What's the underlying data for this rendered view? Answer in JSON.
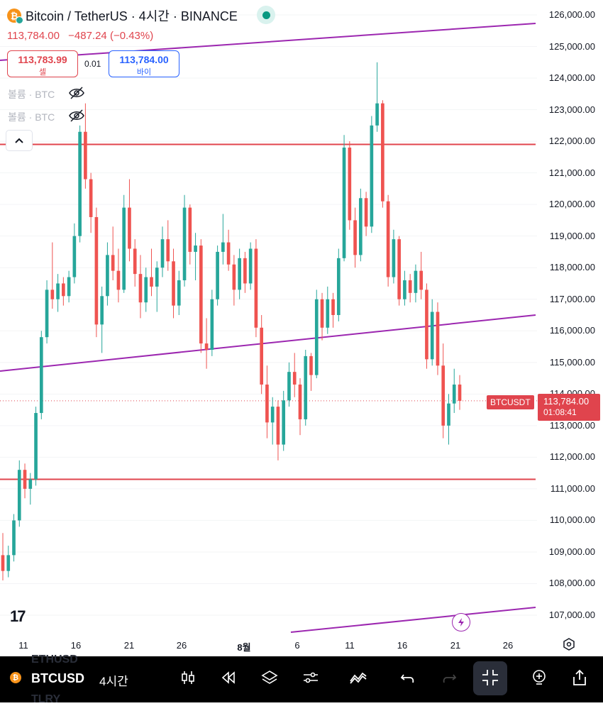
{
  "header": {
    "symbol_title": "Bitcoin / TetherUS · 4시간 · BINANCE",
    "last_price": "113,784.00",
    "change": "−487.24 (−0.43%)"
  },
  "order": {
    "sell_price": "113,783.99",
    "sell_label": "셀",
    "spread": "0.01",
    "buy_price": "113,784.00",
    "buy_label": "바이"
  },
  "indicators": [
    {
      "label": "볼륨 · BTC"
    },
    {
      "label": "볼륨 · BTC"
    }
  ],
  "price_axis": {
    "labels": [
      "126,000.00",
      "125,000.00",
      "124,000.00",
      "123,000.00",
      "122,000.00",
      "121,000.00",
      "120,000.00",
      "119,000.00",
      "118,000.00",
      "117,000.00",
      "116,000.00",
      "115,000.00",
      "114,000.00",
      "113,000.00",
      "112,000.00",
      "111,000.00",
      "110,000.00",
      "109,000.00",
      "108,000.00",
      "107,000.00"
    ]
  },
  "time_axis": {
    "labels": [
      "11",
      "16",
      "21",
      "26",
      "8월",
      "6",
      "11",
      "16",
      "21",
      "26"
    ]
  },
  "price_tag": {
    "symbol": "BTCUSDT",
    "price": "113,784.00",
    "countdown": "01:08:41"
  },
  "toolbar": {
    "symbol": "BTCUSD",
    "interval": "4시간",
    "ghost_top": "ETHUSD",
    "ghost_bottom": "TLRY"
  },
  "colors": {
    "up": "#26a69a",
    "down": "#ef5350",
    "horizontal_level": "#e0444d",
    "channel": "#9c27b0",
    "accent_blue": "#2962ff"
  },
  "chart_data": {
    "type": "candlestick",
    "ylim": [
      106500,
      126500
    ],
    "horizontal_lines": [
      121900,
      111300
    ],
    "current_price": 113784,
    "price_line": 113784,
    "candles": [
      {
        "o": 108900,
        "h": 109600,
        "l": 108100,
        "c": 108400
      },
      {
        "o": 108400,
        "h": 109200,
        "l": 108200,
        "c": 108900
      },
      {
        "o": 108900,
        "h": 110200,
        "l": 108700,
        "c": 110000
      },
      {
        "o": 110000,
        "h": 111900,
        "l": 109800,
        "c": 111600
      },
      {
        "o": 111600,
        "h": 111800,
        "l": 110700,
        "c": 111000
      },
      {
        "o": 111000,
        "h": 111500,
        "l": 110500,
        "c": 111300
      },
      {
        "o": 111300,
        "h": 113600,
        "l": 111100,
        "c": 113400
      },
      {
        "o": 113400,
        "h": 116000,
        "l": 113200,
        "c": 115800
      },
      {
        "o": 115800,
        "h": 117600,
        "l": 115600,
        "c": 117300
      },
      {
        "o": 117300,
        "h": 118800,
        "l": 116700,
        "c": 117000
      },
      {
        "o": 117000,
        "h": 117800,
        "l": 116600,
        "c": 117500
      },
      {
        "o": 117500,
        "h": 117700,
        "l": 116800,
        "c": 117100
      },
      {
        "o": 117100,
        "h": 117900,
        "l": 116900,
        "c": 117700
      },
      {
        "o": 117700,
        "h": 119400,
        "l": 117500,
        "c": 119000
      },
      {
        "o": 119000,
        "h": 122500,
        "l": 118800,
        "c": 122300
      },
      {
        "o": 122300,
        "h": 123200,
        "l": 120500,
        "c": 120800
      },
      {
        "o": 120800,
        "h": 121000,
        "l": 119100,
        "c": 119600
      },
      {
        "o": 119600,
        "h": 119900,
        "l": 115800,
        "c": 116200
      },
      {
        "o": 116200,
        "h": 117400,
        "l": 115300,
        "c": 117100
      },
      {
        "o": 117100,
        "h": 118800,
        "l": 116800,
        "c": 118400
      },
      {
        "o": 118400,
        "h": 119300,
        "l": 117600,
        "c": 117900
      },
      {
        "o": 117900,
        "h": 118600,
        "l": 116900,
        "c": 117300
      },
      {
        "o": 117300,
        "h": 120300,
        "l": 117200,
        "c": 119900
      },
      {
        "o": 119900,
        "h": 120800,
        "l": 118200,
        "c": 118600
      },
      {
        "o": 118600,
        "h": 118900,
        "l": 117400,
        "c": 117800
      },
      {
        "o": 117800,
        "h": 118400,
        "l": 116400,
        "c": 116900
      },
      {
        "o": 116900,
        "h": 118000,
        "l": 116600,
        "c": 117700
      },
      {
        "o": 117700,
        "h": 118600,
        "l": 117100,
        "c": 117400
      },
      {
        "o": 117400,
        "h": 118200,
        "l": 116600,
        "c": 118000
      },
      {
        "o": 118000,
        "h": 119300,
        "l": 117700,
        "c": 118900
      },
      {
        "o": 118900,
        "h": 119500,
        "l": 117900,
        "c": 118200
      },
      {
        "o": 118200,
        "h": 118600,
        "l": 116400,
        "c": 116800
      },
      {
        "o": 116800,
        "h": 117900,
        "l": 116500,
        "c": 117600
      },
      {
        "o": 117600,
        "h": 120300,
        "l": 117400,
        "c": 119900
      },
      {
        "o": 119900,
        "h": 120000,
        "l": 118100,
        "c": 118500
      },
      {
        "o": 118500,
        "h": 119100,
        "l": 117600,
        "c": 118700
      },
      {
        "o": 118700,
        "h": 118900,
        "l": 115300,
        "c": 115600
      },
      {
        "o": 115600,
        "h": 116400,
        "l": 114800,
        "c": 115400
      },
      {
        "o": 115400,
        "h": 117300,
        "l": 115200,
        "c": 117000
      },
      {
        "o": 117000,
        "h": 118700,
        "l": 116800,
        "c": 118500
      },
      {
        "o": 118500,
        "h": 119700,
        "l": 118100,
        "c": 118800
      },
      {
        "o": 118800,
        "h": 119200,
        "l": 117900,
        "c": 118100
      },
      {
        "o": 118100,
        "h": 118400,
        "l": 116800,
        "c": 117300
      },
      {
        "o": 117300,
        "h": 118600,
        "l": 117000,
        "c": 118300
      },
      {
        "o": 118300,
        "h": 118500,
        "l": 117200,
        "c": 117500
      },
      {
        "o": 117500,
        "h": 118800,
        "l": 117300,
        "c": 118600
      },
      {
        "o": 118600,
        "h": 118900,
        "l": 115800,
        "c": 116100
      },
      {
        "o": 116100,
        "h": 116500,
        "l": 114000,
        "c": 114300
      },
      {
        "o": 114300,
        "h": 114900,
        "l": 112600,
        "c": 113100
      },
      {
        "o": 113100,
        "h": 113900,
        "l": 112400,
        "c": 113600
      },
      {
        "o": 113600,
        "h": 113800,
        "l": 111900,
        "c": 112400
      },
      {
        "o": 112400,
        "h": 114100,
        "l": 112200,
        "c": 113800
      },
      {
        "o": 113800,
        "h": 115000,
        "l": 113600,
        "c": 114700
      },
      {
        "o": 114700,
        "h": 115300,
        "l": 113900,
        "c": 114300
      },
      {
        "o": 114300,
        "h": 114500,
        "l": 112700,
        "c": 113200
      },
      {
        "o": 113200,
        "h": 115400,
        "l": 113000,
        "c": 115200
      },
      {
        "o": 115200,
        "h": 115300,
        "l": 114100,
        "c": 114600
      },
      {
        "o": 114600,
        "h": 117300,
        "l": 114500,
        "c": 117000
      },
      {
        "o": 117000,
        "h": 117200,
        "l": 115700,
        "c": 116100
      },
      {
        "o": 116100,
        "h": 117400,
        "l": 115900,
        "c": 117000
      },
      {
        "o": 117000,
        "h": 117200,
        "l": 116100,
        "c": 116500
      },
      {
        "o": 116500,
        "h": 118600,
        "l": 116300,
        "c": 118300
      },
      {
        "o": 118300,
        "h": 122200,
        "l": 118200,
        "c": 121800
      },
      {
        "o": 121800,
        "h": 122000,
        "l": 119200,
        "c": 119500
      },
      {
        "o": 119500,
        "h": 119900,
        "l": 118000,
        "c": 118400
      },
      {
        "o": 118400,
        "h": 120500,
        "l": 118200,
        "c": 120200
      },
      {
        "o": 120200,
        "h": 120400,
        "l": 119000,
        "c": 119300
      },
      {
        "o": 119300,
        "h": 122800,
        "l": 119100,
        "c": 122500
      },
      {
        "o": 122500,
        "h": 124500,
        "l": 122300,
        "c": 123200
      },
      {
        "o": 123200,
        "h": 123300,
        "l": 119900,
        "c": 120100
      },
      {
        "o": 120100,
        "h": 120300,
        "l": 117400,
        "c": 117700
      },
      {
        "o": 117700,
        "h": 119200,
        "l": 117500,
        "c": 118900
      },
      {
        "o": 118900,
        "h": 119000,
        "l": 116800,
        "c": 117000
      },
      {
        "o": 117000,
        "h": 117900,
        "l": 116800,
        "c": 117600
      },
      {
        "o": 117600,
        "h": 117800,
        "l": 116900,
        "c": 117200
      },
      {
        "o": 117200,
        "h": 118100,
        "l": 116900,
        "c": 117900
      },
      {
        "o": 117900,
        "h": 118500,
        "l": 117000,
        "c": 117300
      },
      {
        "o": 117300,
        "h": 117500,
        "l": 114800,
        "c": 115100
      },
      {
        "o": 115100,
        "h": 117000,
        "l": 114900,
        "c": 116600
      },
      {
        "o": 116600,
        "h": 116900,
        "l": 114600,
        "c": 114900
      },
      {
        "o": 114900,
        "h": 115600,
        "l": 112600,
        "c": 113000
      },
      {
        "o": 113000,
        "h": 114000,
        "l": 112400,
        "c": 113700
      },
      {
        "o": 113700,
        "h": 114800,
        "l": 113400,
        "c": 114300
      },
      {
        "o": 114300,
        "h": 114600,
        "l": 113500,
        "c": 113784
      }
    ]
  }
}
